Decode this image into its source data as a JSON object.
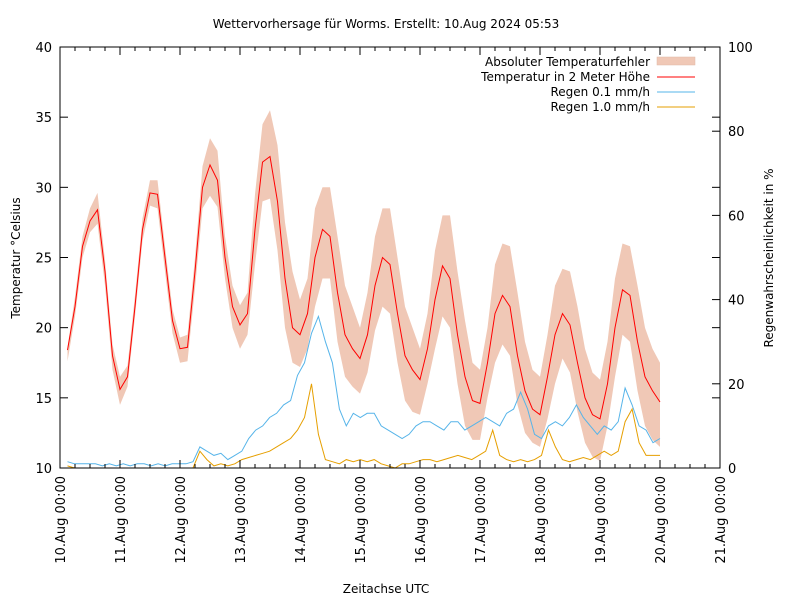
{
  "chart_data": {
    "type": "line",
    "title": "Wettervorhersage für Worms. Erstellt: 10.Aug 2024 05:53",
    "xlabel": "Zeitachse UTC",
    "ylabel": "Temperatur °Celsius",
    "y2label": "Regenwahrscheinlichkeit in %",
    "ylim": [
      10,
      40
    ],
    "y2lim": [
      0,
      100
    ],
    "xlim_days": [
      0,
      11
    ],
    "x_tick_labels": [
      "10.Aug 00:00",
      "11.Aug 00:00",
      "12.Aug 00:00",
      "13.Aug 00:00",
      "14.Aug 00:00",
      "15.Aug 00:00",
      "16.Aug 00:00",
      "17.Aug 00:00",
      "18.Aug 00:00",
      "19.Aug 00:00",
      "20.Aug 00:00",
      "21.Aug 00:00"
    ],
    "y_ticks": [
      10,
      15,
      20,
      25,
      30,
      35,
      40
    ],
    "y2_ticks": [
      0,
      20,
      40,
      60,
      80,
      100
    ],
    "grid": false,
    "legend_position": "top-right",
    "x_step_hours": 3,
    "x_start_hours": 3,
    "series": [
      {
        "name": "Temperatur in 2 Meter Höhe",
        "axis": "y",
        "color": "#ff0000",
        "values": [
          18.4,
          21.5,
          25.8,
          27.6,
          28.4,
          24.0,
          18.0,
          15.6,
          16.5,
          21.5,
          27.0,
          29.6,
          29.5,
          25.0,
          20.5,
          18.5,
          18.6,
          24.0,
          30.0,
          31.6,
          30.5,
          25.0,
          21.5,
          20.2,
          21.0,
          27.0,
          31.8,
          32.2,
          29.0,
          23.5,
          20.0,
          19.5,
          21.0,
          25.0,
          27.0,
          26.5,
          22.5,
          19.5,
          18.5,
          17.8,
          19.5,
          23.0,
          25.0,
          24.5,
          21.0,
          18.0,
          17.0,
          16.3,
          18.5,
          22.0,
          24.4,
          23.5,
          19.5,
          16.5,
          14.8,
          14.6,
          17.5,
          21.0,
          22.3,
          21.5,
          18.0,
          15.5,
          14.2,
          13.8,
          16.5,
          19.5,
          21.0,
          20.2,
          17.5,
          15.0,
          13.8,
          13.5,
          16.0,
          20.0,
          22.7,
          22.3,
          19.0,
          16.5,
          15.5,
          14.7
        ]
      },
      {
        "name": "Absoluter Temperaturfehler",
        "axis": "y",
        "color": "#f0c8b6",
        "type": "area",
        "upper": [
          18.6,
          22.2,
          26.5,
          28.5,
          29.6,
          24.8,
          18.8,
          16.5,
          17.3,
          22.3,
          27.8,
          30.5,
          30.5,
          25.8,
          21.3,
          19.3,
          19.5,
          25.0,
          31.5,
          33.5,
          32.6,
          26.5,
          23.0,
          21.6,
          22.5,
          29.5,
          34.5,
          35.5,
          33.0,
          27.5,
          24.0,
          22.0,
          23.5,
          28.5,
          30.0,
          30.0,
          26.5,
          23.0,
          21.5,
          20.0,
          22.5,
          26.5,
          28.5,
          28.5,
          25.0,
          21.5,
          20.0,
          18.5,
          21.0,
          25.5,
          28.0,
          28.0,
          24.0,
          20.5,
          17.5,
          17.0,
          20.0,
          24.5,
          26.0,
          25.8,
          22.5,
          19.0,
          17.0,
          16.5,
          19.5,
          23.0,
          24.2,
          24.0,
          21.5,
          18.5,
          16.8,
          16.3,
          19.0,
          23.5,
          26.0,
          25.8,
          23.0,
          20.0,
          18.5,
          17.5
        ],
        "lower": [
          17.6,
          20.8,
          25.0,
          26.8,
          27.4,
          23.0,
          17.0,
          14.5,
          15.8,
          20.8,
          26.2,
          28.7,
          28.5,
          24.0,
          19.6,
          17.5,
          17.6,
          22.8,
          28.5,
          29.4,
          28.6,
          23.5,
          20.0,
          18.5,
          19.5,
          24.5,
          29.0,
          29.2,
          25.5,
          20.0,
          17.5,
          17.2,
          18.5,
          21.5,
          23.5,
          23.5,
          19.0,
          16.5,
          15.8,
          15.3,
          16.8,
          19.8,
          21.5,
          21.0,
          17.5,
          14.8,
          14.0,
          13.8,
          16.0,
          18.5,
          20.8,
          20.0,
          16.0,
          13.0,
          12.0,
          12.0,
          15.0,
          17.5,
          18.8,
          18.0,
          14.5,
          12.5,
          11.8,
          11.5,
          13.5,
          16.0,
          17.8,
          16.8,
          14.0,
          11.8,
          10.8,
          10.5,
          13.0,
          16.5,
          19.5,
          19.0,
          15.5,
          13.0,
          12.0,
          11.5
        ]
      },
      {
        "name": "Regen 0.1 mm/h",
        "axis": "y2",
        "color": "#56b4e9",
        "values": [
          1.5,
          1,
          1,
          1,
          1,
          0.5,
          1,
          0.5,
          1,
          0.5,
          1,
          1,
          0.5,
          1,
          0.5,
          1,
          1,
          1,
          1.5,
          5,
          4,
          3,
          3.5,
          2,
          3,
          4,
          7,
          9,
          10,
          12,
          13,
          15,
          16,
          22,
          25,
          32,
          36,
          30,
          25,
          14,
          10,
          13,
          12,
          13,
          13,
          10,
          9,
          8,
          7,
          8,
          10,
          11,
          11,
          10,
          9,
          11,
          11,
          9,
          10,
          11,
          12,
          11,
          10,
          13,
          14,
          18,
          14,
          8,
          7,
          10,
          11,
          10,
          12,
          15,
          12,
          10,
          8,
          10,
          9,
          11,
          19,
          15,
          10,
          9,
          6,
          7
        ]
      },
      {
        "name": "Regen 1.0 mm/h",
        "axis": "y2",
        "color": "#e69f00",
        "values": [
          0.5,
          0,
          0,
          0,
          0,
          0,
          0,
          0,
          0,
          0,
          0,
          0,
          0,
          0,
          0,
          0,
          0,
          0,
          0,
          4,
          2,
          0.5,
          1,
          0.5,
          1,
          2,
          2.5,
          3,
          3.5,
          4,
          5,
          6,
          7,
          9,
          12,
          20,
          8,
          2,
          1.5,
          1,
          2,
          1.5,
          2,
          1.5,
          2,
          1,
          0.5,
          0,
          1,
          1,
          1.5,
          2,
          2,
          1.5,
          2,
          2.5,
          3,
          2.5,
          2,
          3,
          4,
          9,
          3,
          2,
          1.5,
          2,
          1.5,
          2,
          3,
          9,
          5,
          2,
          1.5,
          2,
          2.5,
          2,
          3,
          4,
          3,
          4,
          11,
          14,
          6,
          3,
          3,
          3
        ]
      }
    ]
  },
  "legend": {
    "items": [
      {
        "label": "Absoluter Temperaturfehler",
        "color": "#f0c8b6",
        "kind": "box"
      },
      {
        "label": "Temperatur in 2 Meter Höhe",
        "color": "#ff0000",
        "kind": "line"
      },
      {
        "label": "Regen 0.1 mm/h",
        "color": "#56b4e9",
        "kind": "line"
      },
      {
        "label": "Regen 1.0 mm/h",
        "color": "#e69f00",
        "kind": "line"
      }
    ]
  }
}
